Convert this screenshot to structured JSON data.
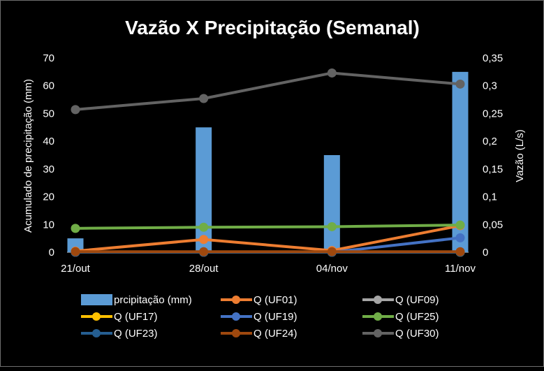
{
  "chart_data": {
    "type": "bar+line",
    "title": "Vazão X Precipitação (Semanal)",
    "categories": [
      "21/out",
      "28/out",
      "04/nov",
      "11/nov"
    ],
    "ylabel_left": "Acumulado de precipitação (mm)",
    "ylabel_right": "Vazão (L/s)",
    "ylim_left": [
      0,
      70
    ],
    "ylim_right": [
      0,
      0.35
    ],
    "yticks_left": [
      "0",
      "10",
      "20",
      "30",
      "40",
      "50",
      "60",
      "70"
    ],
    "yticks_right": [
      "0",
      "0,05",
      "0,1",
      "0,15",
      "0,2",
      "0,25",
      "0,3",
      "0,35"
    ],
    "bar_series": {
      "name": "prcipitação (mm)",
      "color": "#5b9bd5",
      "values": [
        5,
        45,
        35,
        65
      ]
    },
    "line_series": [
      {
        "name": "Q (UF01)",
        "color": "#ed7d31",
        "values": [
          0.002,
          0.023,
          0.003,
          0.048
        ]
      },
      {
        "name": "Q (UF09)",
        "color": "#a5a5a5",
        "values": [
          0.0,
          0.0,
          0.0,
          0.0
        ]
      },
      {
        "name": "Q (UF17)",
        "color": "#ffc000",
        "values": [
          0.0,
          0.0,
          0.0,
          0.0
        ]
      },
      {
        "name": "Q (UF19)",
        "color": "#4472c4",
        "values": [
          0.0,
          0.0,
          0.0,
          0.026
        ]
      },
      {
        "name": "Q (UF25)",
        "color": "#70ad47",
        "values": [
          0.043,
          0.045,
          0.046,
          0.049
        ]
      },
      {
        "name": "Q (UF23)",
        "color": "#255e91",
        "values": [
          0.0,
          0.0,
          0.0,
          0.0
        ]
      },
      {
        "name": "Q (UF24)",
        "color": "#9e480e",
        "values": [
          0.001,
          0.001,
          0.001,
          0.001
        ]
      },
      {
        "name": "Q (UF30)",
        "color": "#636363",
        "values": [
          0.257,
          0.277,
          0.323,
          0.303
        ]
      }
    ],
    "legend_position": "bottom",
    "grid": false
  }
}
